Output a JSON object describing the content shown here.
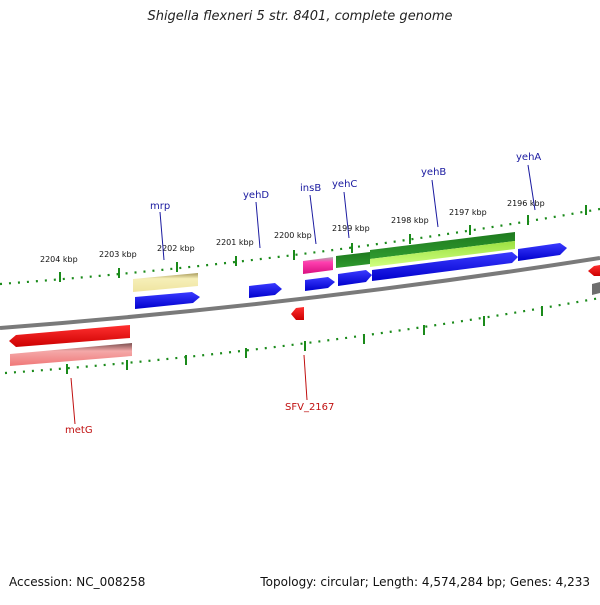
{
  "title": "Shigella flexneri 5 str. 8401, complete genome",
  "footer": {
    "accession": "Accession: NC_008258",
    "topology": "Topology: circular; Length: 4,574,284 bp; Genes: 4,233"
  },
  "scale_labels": [
    "2204 kbp",
    "2203 kbp",
    "2202 kbp",
    "2201 kbp",
    "2200 kbp",
    "2199 kbp",
    "2198 kbp",
    "2197 kbp",
    "2196 kbp"
  ],
  "genes_forward_labels": [
    "mrp",
    "yehD",
    "insB",
    "yehC",
    "yehB",
    "yehA"
  ],
  "genes_reverse_labels": [
    "metG",
    "SFV_2167"
  ],
  "colors": {
    "forward_gene": "#0000ee",
    "reverse_gene": "#ee0000",
    "tick": "#1a8a1a",
    "backbone": "#777777",
    "forward_label": "#1a1aa0",
    "reverse_label": "#c01010",
    "pseudo_yellow": "#f0e6a0",
    "insertion_magenta": "#ee1a9a",
    "green_dark": "#228b22",
    "green_light": "#b8f060",
    "pink": "#f2a0a0"
  }
}
